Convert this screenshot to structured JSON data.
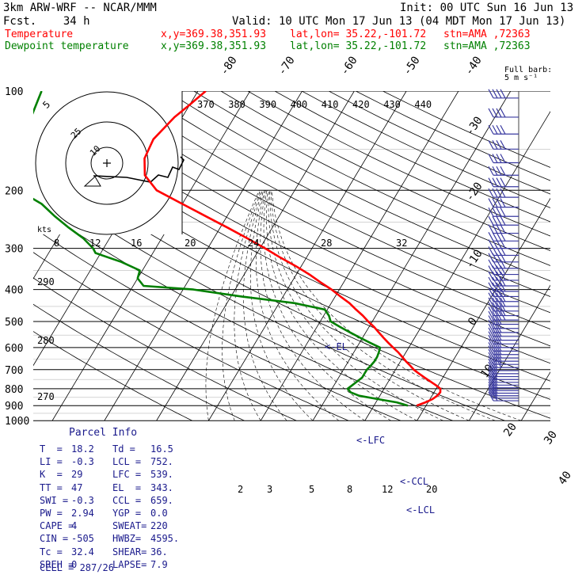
{
  "header": {
    "model": "3km ARW-WRF -- NCAR/MMM",
    "init": "Init: 00 UTC Sun 16 Jun 13",
    "fcst": "Fcst.    34 h",
    "valid": "Valid: 10 UTC Mon 17 Jun 13 (04 MDT Mon 17 Jun 13)",
    "temp_label": "Temperature",
    "dew_label": "Dewpoint temperature",
    "xy": "x,y=369.38,351.93",
    "latlon": "lat,lon= 35.22,-101.72",
    "stn": "stn=AMA ,72363"
  },
  "colors": {
    "temperature": "#ff0000",
    "dewpoint": "#008000",
    "barbs": "#3a3aa0",
    "grid": "#000000"
  },
  "chart_data": {
    "type": "line",
    "title": "",
    "xlabel": "",
    "ylabel": "",
    "y_scale": "log-pressure",
    "ylim": [
      1000,
      100
    ],
    "pressure_ticks": [
      "100",
      "200",
      "300",
      "400",
      "500",
      "600",
      "700",
      "800",
      "900",
      "1000"
    ],
    "isotherm_labels": [
      "-80",
      "-70",
      "-60",
      "-50",
      "-40",
      "-30",
      "-20",
      "-10",
      "0",
      "10",
      "20",
      "30",
      "40"
    ],
    "theta_labels": [
      "370",
      "380",
      "390",
      "400",
      "410",
      "420",
      "430",
      "440"
    ],
    "theta_left_labels": [
      "290",
      "280",
      "270"
    ],
    "wind_speed_labels": [
      "8",
      "12",
      "16",
      "20",
      "24",
      "28",
      "32"
    ],
    "wind_units_label": "kts",
    "hodograph_labels": [
      "5",
      "10",
      "25"
    ],
    "mixing_ratio_labels": [
      "2",
      "3",
      "5",
      "8",
      "12",
      "20"
    ],
    "barb_legend": "Full barb:\n5 m s⁻¹",
    "annotations": [
      "<-EL",
      "<-LFC",
      "<-CCL",
      "<-LCL"
    ],
    "series": [
      {
        "name": "Temperature",
        "pressure": [
          900,
          880,
          860,
          840,
          820,
          800,
          780,
          760,
          740,
          720,
          700,
          680,
          660,
          640,
          620,
          600,
          580,
          560,
          540,
          520,
          500,
          480,
          460,
          440,
          420,
          400,
          380,
          360,
          340,
          320,
          300,
          280,
          260,
          240,
          220,
          200,
          180,
          160,
          140,
          120,
          110,
          100
        ],
        "values": [
          18.2,
          19.5,
          20.5,
          21.0,
          21.2,
          20.8,
          19.5,
          18.0,
          16.5,
          15.0,
          13.5,
          12.3,
          11.0,
          9.8,
          8.5,
          7.0,
          5.5,
          4.0,
          2.5,
          1.0,
          -0.8,
          -2.5,
          -4.5,
          -6.5,
          -9.0,
          -11.5,
          -14.5,
          -17.5,
          -21.0,
          -25.0,
          -29.0,
          -33.5,
          -38.5,
          -44.0,
          -50.0,
          -56.5,
          -60.5,
          -62.5,
          -63.0,
          -61.5,
          -60.0,
          -58.5
        ]
      },
      {
        "name": "Dewpoint temperature",
        "pressure": [
          900,
          880,
          860,
          840,
          820,
          800,
          780,
          760,
          740,
          720,
          700,
          680,
          660,
          640,
          620,
          600,
          580,
          560,
          540,
          520,
          500,
          480,
          460,
          440,
          420,
          400,
          390,
          370,
          350,
          330,
          310,
          300,
          280,
          260,
          240,
          220,
          200,
          180,
          160,
          140,
          120,
          100
        ],
        "values": [
          16.5,
          14.0,
          10.0,
          6.0,
          4.0,
          3.0,
          3.5,
          4.0,
          4.5,
          4.5,
          4.5,
          4.8,
          5.0,
          5.0,
          4.8,
          4.5,
          2.0,
          -0.5,
          -3.0,
          -5.5,
          -8.0,
          -9.0,
          -10.5,
          -17.0,
          -28.0,
          -38.0,
          -48.0,
          -50.0,
          -50.5,
          -55.0,
          -61.0,
          -62.0,
          -65.0,
          -69.0,
          -73.0,
          -77.0,
          -83.0,
          -85.0,
          -87.0,
          -88.0,
          -89.0,
          -90.0
        ]
      }
    ]
  },
  "parcel": {
    "title": "Parcel Info",
    "rows": [
      [
        "T  =",
        "18.2",
        "Td =",
        "16.5"
      ],
      [
        "LI =",
        "-0.3",
        "LCL =",
        "752."
      ],
      [
        "K  =",
        "29",
        "LFC =",
        "539."
      ],
      [
        "TT =",
        "47",
        "EL  =",
        "343."
      ],
      [
        "SWI =",
        "-0.3",
        "CCL =",
        "659."
      ],
      [
        "PW =",
        "2.94",
        "YGP =",
        "0.0"
      ],
      [
        "CAPE =",
        "4",
        "SWEAT=",
        "220"
      ],
      [
        "CIN =",
        "-505",
        "HWBZ=",
        "4595."
      ],
      [
        "Tc =",
        "32.4",
        "SHEAR=",
        "36."
      ],
      [
        "SREH =",
        "0",
        "LAPSE=",
        "7.9"
      ]
    ],
    "cell": "CELL = 287/26"
  }
}
